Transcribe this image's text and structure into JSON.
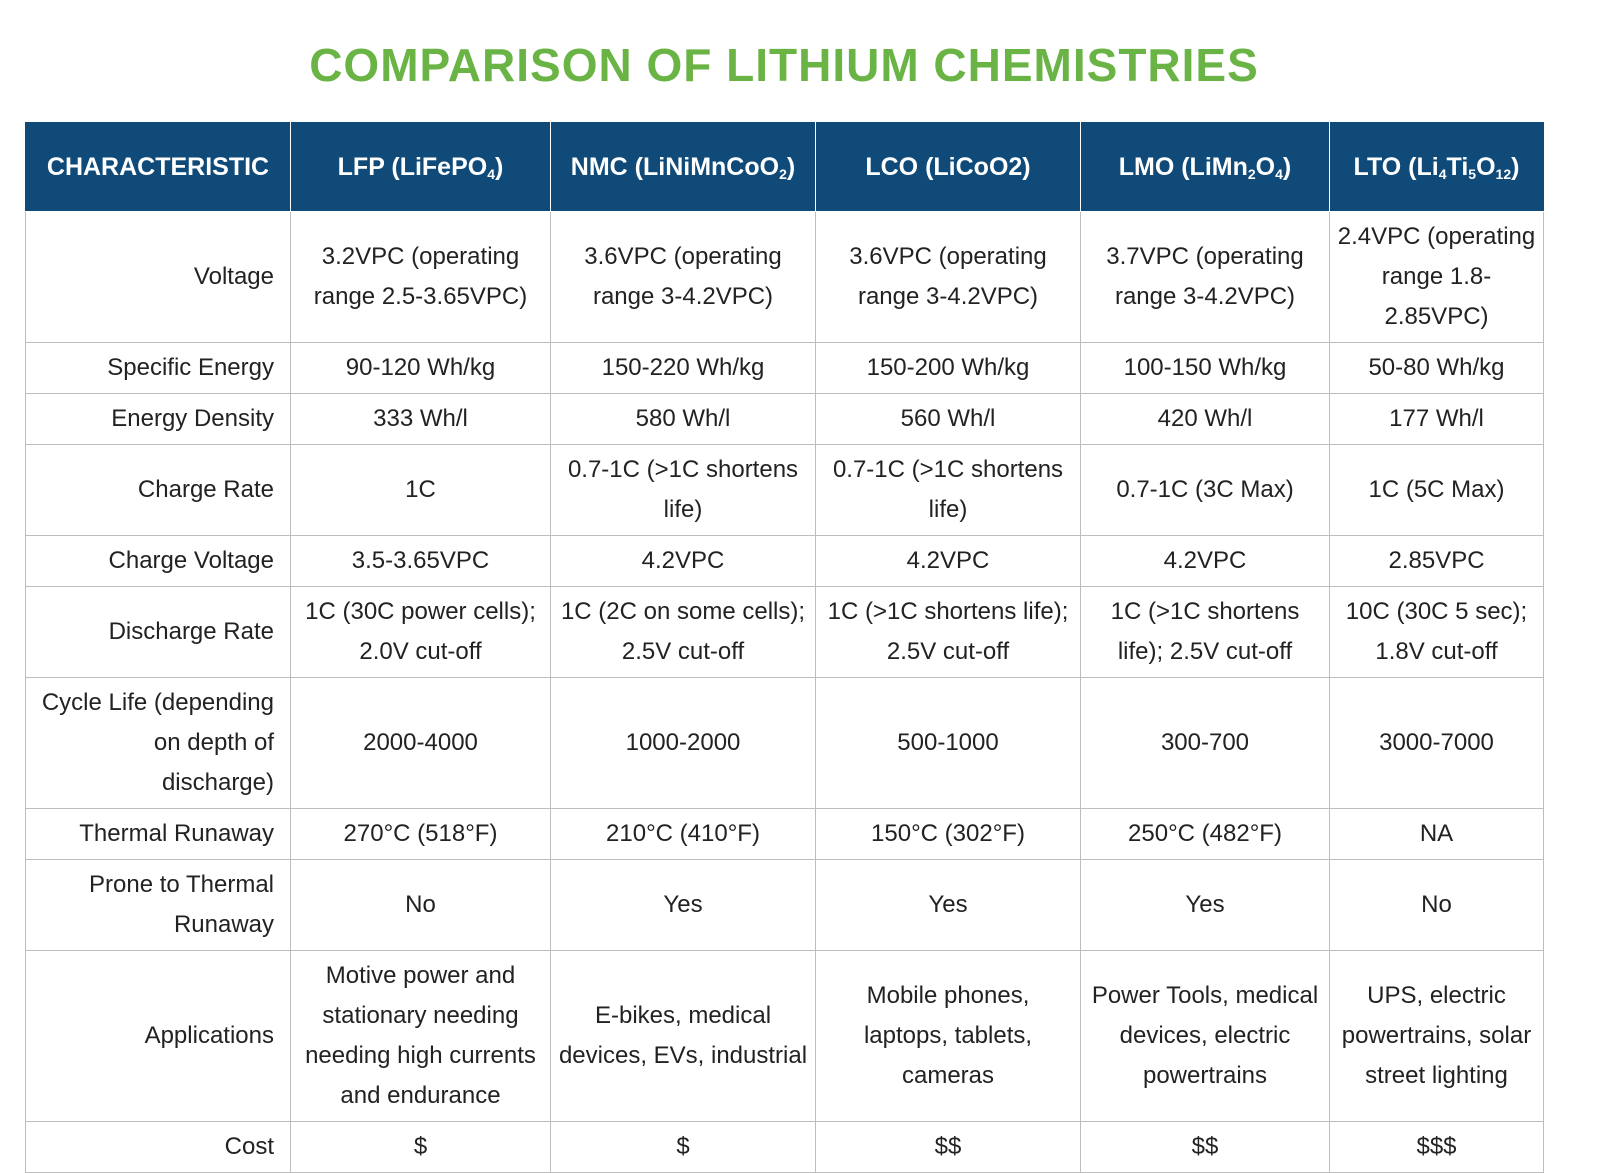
{
  "title": "COMPARISON OF LITHIUM CHEMISTRIES",
  "colors": {
    "title_green": "#6ab446",
    "header_blue": "#0f4a78",
    "border_gray": "#bdbdbd"
  },
  "table": {
    "headers": [
      {
        "main": "CHARACTERISTIC",
        "parts": []
      },
      {
        "main": "LFP (LiFePO",
        "parts": [
          {
            "sub": "4"
          },
          {
            "text": ")"
          }
        ]
      },
      {
        "main": "NMC (LiNiMnCoO",
        "parts": [
          {
            "sub": "2"
          },
          {
            "text": ")"
          }
        ]
      },
      {
        "main": "LCO (LiCoO2)",
        "parts": []
      },
      {
        "main": "LMO (LiMn",
        "parts": [
          {
            "sub": "2"
          },
          {
            "text": "O"
          },
          {
            "sub": "4"
          },
          {
            "text": ")"
          }
        ]
      },
      {
        "main": "LTO (Li",
        "parts": [
          {
            "sub": "4"
          },
          {
            "text": "Ti"
          },
          {
            "sub": "5"
          },
          {
            "text": "O"
          },
          {
            "sub": "12"
          },
          {
            "text": ")"
          }
        ]
      }
    ],
    "rows": [
      {
        "label": "Voltage",
        "cells": [
          "3.2VPC (operating range 2.5-3.65VPC)",
          "3.6VPC (operating range 3-4.2VPC)",
          "3.6VPC (operating range 3-4.2VPC)",
          "3.7VPC (operating range 3-4.2VPC)",
          "2.4VPC (operating range 1.8-2.85VPC)"
        ]
      },
      {
        "label": "Specific Energy",
        "cells": [
          "90-120 Wh/kg",
          "150-220 Wh/kg",
          "150-200 Wh/kg",
          "100-150 Wh/kg",
          "50-80 Wh/kg"
        ]
      },
      {
        "label": "Energy Density",
        "cells": [
          "333 Wh/l",
          "580 Wh/l",
          "560 Wh/l",
          "420 Wh/l",
          "177 Wh/l"
        ]
      },
      {
        "label": "Charge Rate",
        "cells": [
          "1C",
          "0.7-1C (>1C shortens life)",
          "0.7-1C (>1C shortens life)",
          "0.7-1C (3C Max)",
          "1C (5C Max)"
        ]
      },
      {
        "label": "Charge Voltage",
        "cells": [
          "3.5-3.65VPC",
          "4.2VPC",
          "4.2VPC",
          "4.2VPC",
          "2.85VPC"
        ]
      },
      {
        "label": "Discharge Rate",
        "cells": [
          "1C (30C power cells); 2.0V cut-off",
          "1C (2C on some cells); 2.5V cut-off",
          "1C (>1C shortens life); 2.5V cut-off",
          "1C (>1C shortens life); 2.5V cut-off",
          "10C (30C 5 sec); 1.8V cut-off"
        ]
      },
      {
        "label": "Cycle Life (depending on depth of discharge)",
        "cells": [
          "2000-4000",
          "1000-2000",
          "500-1000",
          "300-700",
          "3000-7000"
        ]
      },
      {
        "label": "Thermal Runaway",
        "cells": [
          "270°C (518°F)",
          "210°C (410°F)",
          "150°C (302°F)",
          "250°C (482°F)",
          "NA"
        ]
      },
      {
        "label": "Prone to Thermal Runaway",
        "cells": [
          "No",
          "Yes",
          "Yes",
          "Yes",
          "No"
        ]
      },
      {
        "label": "Applications",
        "cells": [
          "Motive power and stationary needing needing high currents and endurance",
          "E-bikes, medical devices, EVs, industrial",
          "Mobile phones, laptops, tablets, cameras",
          "Power Tools, medical devices, electric powertrains",
          "UPS, electric powertrains, solar street lighting"
        ]
      },
      {
        "label": "Cost",
        "cells": [
          "$",
          "$",
          "$$",
          "$$",
          "$$$"
        ]
      }
    ]
  }
}
